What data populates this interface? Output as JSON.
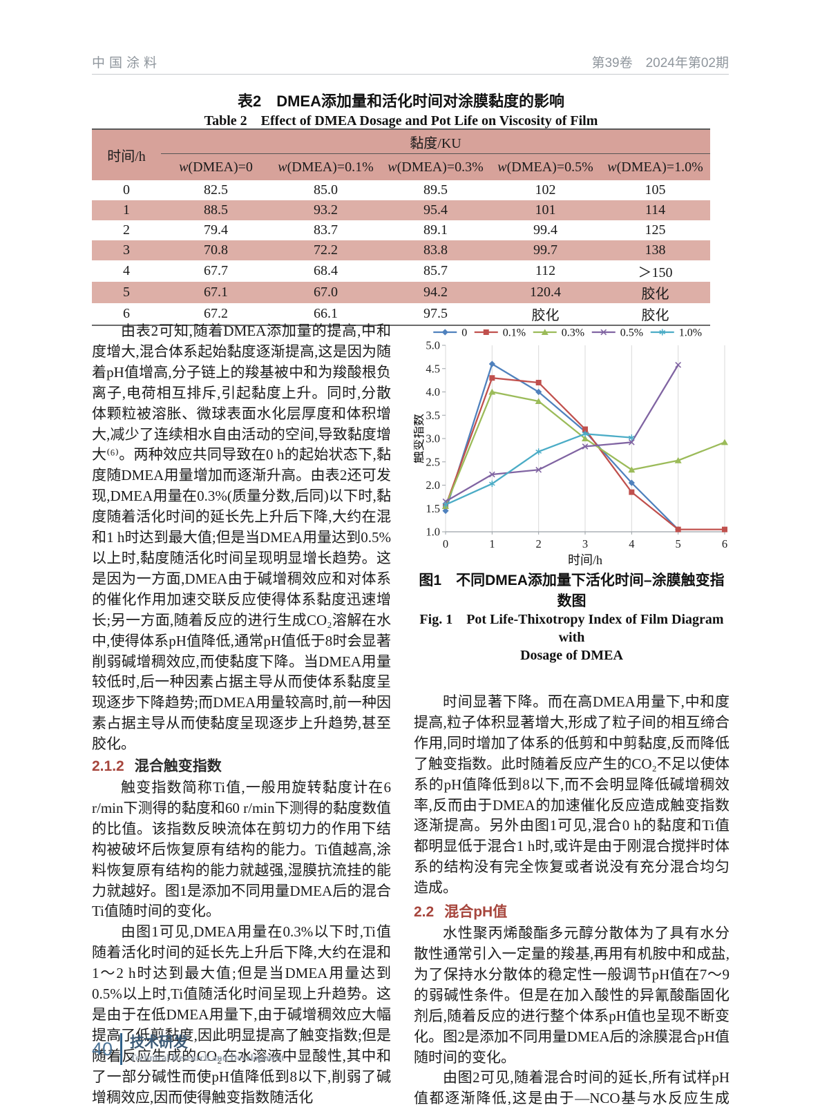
{
  "header": {
    "journal": "中国涂料",
    "issue": "第39卷　2024年第02期"
  },
  "table": {
    "title_zh": "表2　DMEA添加量和活化时间对涂膜黏度的影响",
    "title_en": "Table 2　Effect of DMEA Dosage and Pot Life on Viscosity of Film",
    "col_time": "时间/h",
    "col_viscosity": "黏度/KU",
    "sub_headers": [
      "w(DMEA)=0",
      "w(DMEA)=0.1%",
      "w(DMEA)=0.3%",
      "w(DMEA)=0.5%",
      "w(DMEA)=1.0%"
    ],
    "rows": [
      [
        "0",
        "82.5",
        "85.0",
        "89.5",
        "102",
        "105"
      ],
      [
        "1",
        "88.5",
        "93.2",
        "95.4",
        "101",
        "114"
      ],
      [
        "2",
        "79.4",
        "83.7",
        "89.1",
        "99.4",
        "125"
      ],
      [
        "3",
        "70.8",
        "72.2",
        "83.8",
        "99.7",
        "138"
      ],
      [
        "4",
        "67.7",
        "68.4",
        "85.7",
        "112",
        "＞150"
      ],
      [
        "5",
        "67.1",
        "67.0",
        "94.2",
        "120.4",
        "胶化"
      ],
      [
        "6",
        "67.2",
        "66.1",
        "97.5",
        "胶化",
        "胶化"
      ]
    ]
  },
  "left_column": {
    "p1": "由表2可知,随着DMEA添加量的提高,中和度增大,混合体系起始黏度逐渐提高,这是因为随着pH值增高,分子链上的羧基被中和为羧酸根负离子,电荷相互排斥,引起黏度上升。同时,分散体颗粒被溶胀、微球表面水化层厚度和体积增大,减少了连续相水自由活动的空间,导致黏度增大⁽⁶⁾。两种效应共同导致在0 h的起始状态下,黏度随DMEA用量增加而逐渐升高。由表2还可发现,DMEA用量在0.3%(质量分数,后同)以下时,黏度随着活化时间的延长先上升后下降,大约在混和1 h时达到最大值;但是当DMEA用量达到0.5%以上时,黏度随活化时间呈现明显增长趋势。这是因为一方面,DMEA由于碱增稠效应和对体系的催化作用加速交联反应使得体系黏度迅速增长;另一方面,随着反应的进行生成CO₂溶解在水中,使得体系pH值降低,通常pH值低于8时会显著削弱碱增稠效应,而使黏度下降。当DMEA用量较低时,后一种因素占据主导从而使体系黏度呈现逐步下降趋势;而DMEA用量较高时,前一种因素占据主导从而使黏度呈现逐步上升趋势,甚至胶化。",
    "h212_num": "2.1.2",
    "h212_title": "混合触变指数",
    "p2": "触变指数简称Ti值,一般用旋转黏度计在6 r/min下测得的黏度和60 r/min下测得的黏度数值的比值。该指数反映流体在剪切力的作用下结构被破坏后恢复原有结构的能力。Ti值越高,涂料恢复原有结构的能力就越强,湿膜抗流挂的能力就越好。图1是添加不同用量DMEA后的混合Ti值随时间的变化。",
    "p3": "由图1可见,DMEA用量在0.3%以下时,Ti值随着活化时间的延长先上升后下降,大约在混和1～2 h时达到最大值;但是当DMEA用量达到0.5%以上时,Ti值随活化时间呈现上升趋势。这是由于在低DMEA用量下,由于碱增稠效应大幅提高了低剪黏度,因此明显提高了触变指数;但是随着反应生成的CO₂在水溶液中显酸性,其中和了一部分碱性而使pH值降低到8以下,削弱了碱增稠效应,因而使得触变指数随活化"
  },
  "right_column": {
    "p4": "时间显著下降。而在高DMEA用量下,中和度提高,粒子体积显著增大,形成了粒子间的相互缔合作用,同时增加了体系的低剪和中剪黏度,反而降低了触变指数。此时随着反应产生的CO₂不足以使体系的pH值降低到8以下,而不会明显降低碱增稠效率,反而由于DMEA的加速催化反应造成触变指数逐渐提高。另外由图1可见,混合0 h的黏度和Ti值都明显低于混合1 h时,或许是由于刚混合搅拌时体系的结构没有完全恢复或者说没有充分混合均匀造成。",
    "h22_num": "2.2",
    "h22_title": "混合pH值",
    "p5": "水性聚丙烯酸酯多元醇分散体为了具有水分散性通常引入一定量的羧基,再用有机胺中和成盐,为了保持水分散体的稳定性一般调节pH值在7～9的弱碱性条件。但是在加入酸性的异氰酸酯固化剂后,随着反应的进行整个体系pH值也呈现不断变化。图2是添加不同用量DMEA后的涂膜混合pH值随时间的变化。",
    "p6": "由图2可见,随着混合时间的延长,所有试样pH值都逐渐降低,这是由于—NCO基与水反应生成"
  },
  "figure": {
    "caption_zh": "图1　不同DMEA添加量下活化时间–涂膜触变指数图",
    "caption_en1": "Fig. 1　Pot Life-Thixotropy Index of Film Diagram with",
    "caption_en2": "Dosage of DMEA"
  },
  "chart_data": {
    "type": "line",
    "title": "",
    "xlabel": "时间/h",
    "ylabel": "触变指数",
    "xlim": [
      0,
      6
    ],
    "ylim": [
      1.0,
      5.0
    ],
    "ytick_step": 0.5,
    "grid": "vertical",
    "legend_position": "top",
    "x": [
      0,
      1,
      2,
      3,
      4,
      5,
      6
    ],
    "series": [
      {
        "name": "0",
        "color": "#4F81BD",
        "marker": "diamond",
        "values": [
          1.45,
          4.6,
          4.0,
          3.15,
          2.05,
          1.05,
          null
        ]
      },
      {
        "name": "0.1%",
        "color": "#C0504D",
        "marker": "square",
        "values": [
          1.55,
          4.3,
          4.2,
          3.2,
          1.85,
          1.05,
          1.05
        ]
      },
      {
        "name": "0.3%",
        "color": "#9BBB59",
        "marker": "triangle",
        "values": [
          1.55,
          4.0,
          3.8,
          3.0,
          2.33,
          2.53,
          2.92
        ]
      },
      {
        "name": "0.5%",
        "color": "#8064A2",
        "marker": "x",
        "values": [
          1.65,
          2.23,
          2.33,
          2.83,
          2.92,
          4.58,
          null
        ]
      },
      {
        "name": "1.0%",
        "color": "#4BACC6",
        "marker": "asterisk",
        "values": [
          1.58,
          2.03,
          2.72,
          3.1,
          3.02,
          null,
          null
        ]
      }
    ]
  },
  "footer": {
    "page": "40",
    "section_zh": "技术研发",
    "section_en": "Technical Research and Development"
  }
}
